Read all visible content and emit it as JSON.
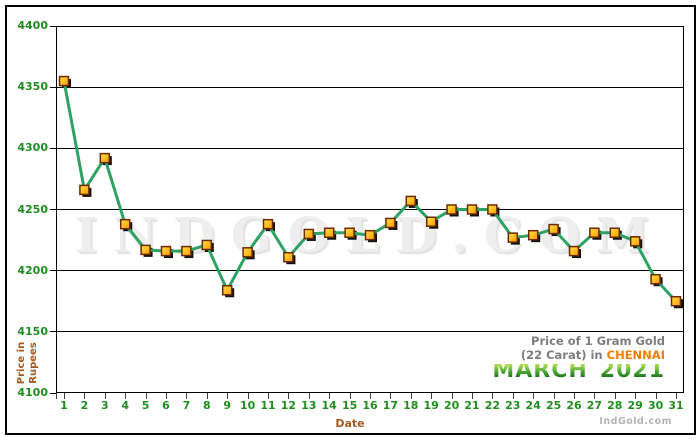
{
  "chart_data": {
    "type": "line",
    "title": "Price of 1 Gram Gold (22 Carat) in Chennai - March 2021",
    "x": [
      1,
      2,
      3,
      4,
      5,
      6,
      7,
      8,
      9,
      10,
      11,
      12,
      13,
      14,
      15,
      16,
      17,
      18,
      19,
      20,
      21,
      22,
      23,
      24,
      25,
      26,
      27,
      28,
      29,
      30,
      31
    ],
    "values": [
      4355,
      4266,
      4292,
      4238,
      4217,
      4216,
      4216,
      4221,
      4184,
      4215,
      4238,
      4211,
      4230,
      4231,
      4231,
      4229,
      4239,
      4257,
      4240,
      4250,
      4250,
      4250,
      4227,
      4229,
      4234,
      4216,
      4231,
      4231,
      4224,
      4193,
      4175
    ],
    "xlabel": "Date",
    "ylabel": "Price in Rupees",
    "ylabel_lines": [
      "Price in",
      "Rupees"
    ],
    "ylim": [
      4100,
      4400
    ],
    "yticks": [
      4400,
      4350,
      4300,
      4250,
      4200,
      4150,
      4100
    ],
    "grid": true,
    "legend_position": "bottom-right"
  },
  "legend": {
    "line1": "Price of 1 Gram Gold",
    "line2": "(22 Carat) in",
    "city": "CHENNAI",
    "month": "MARCH",
    "year": "2021"
  },
  "watermark": {
    "text": "INDGOLD.COM"
  },
  "footer": {
    "brand": "IndGold.com"
  },
  "colors": {
    "line_green": "#2fa263",
    "marker_fill_light": "#ffe04a",
    "marker_fill_dark": "#ff9c00",
    "marker_border": "#6b2a00",
    "marker_shadow": "#111111",
    "axis_text_green": "#1f8e1f",
    "axis_title_brown": "#a5591f",
    "legend_gray": "#7d7d7d",
    "city_orange": "#f57d00",
    "month_green_top": "#a8d94e",
    "month_green_bottom": "#1e741e",
    "watermark_gray": "#eeeeee",
    "brand_gray": "#b3b3b3"
  }
}
